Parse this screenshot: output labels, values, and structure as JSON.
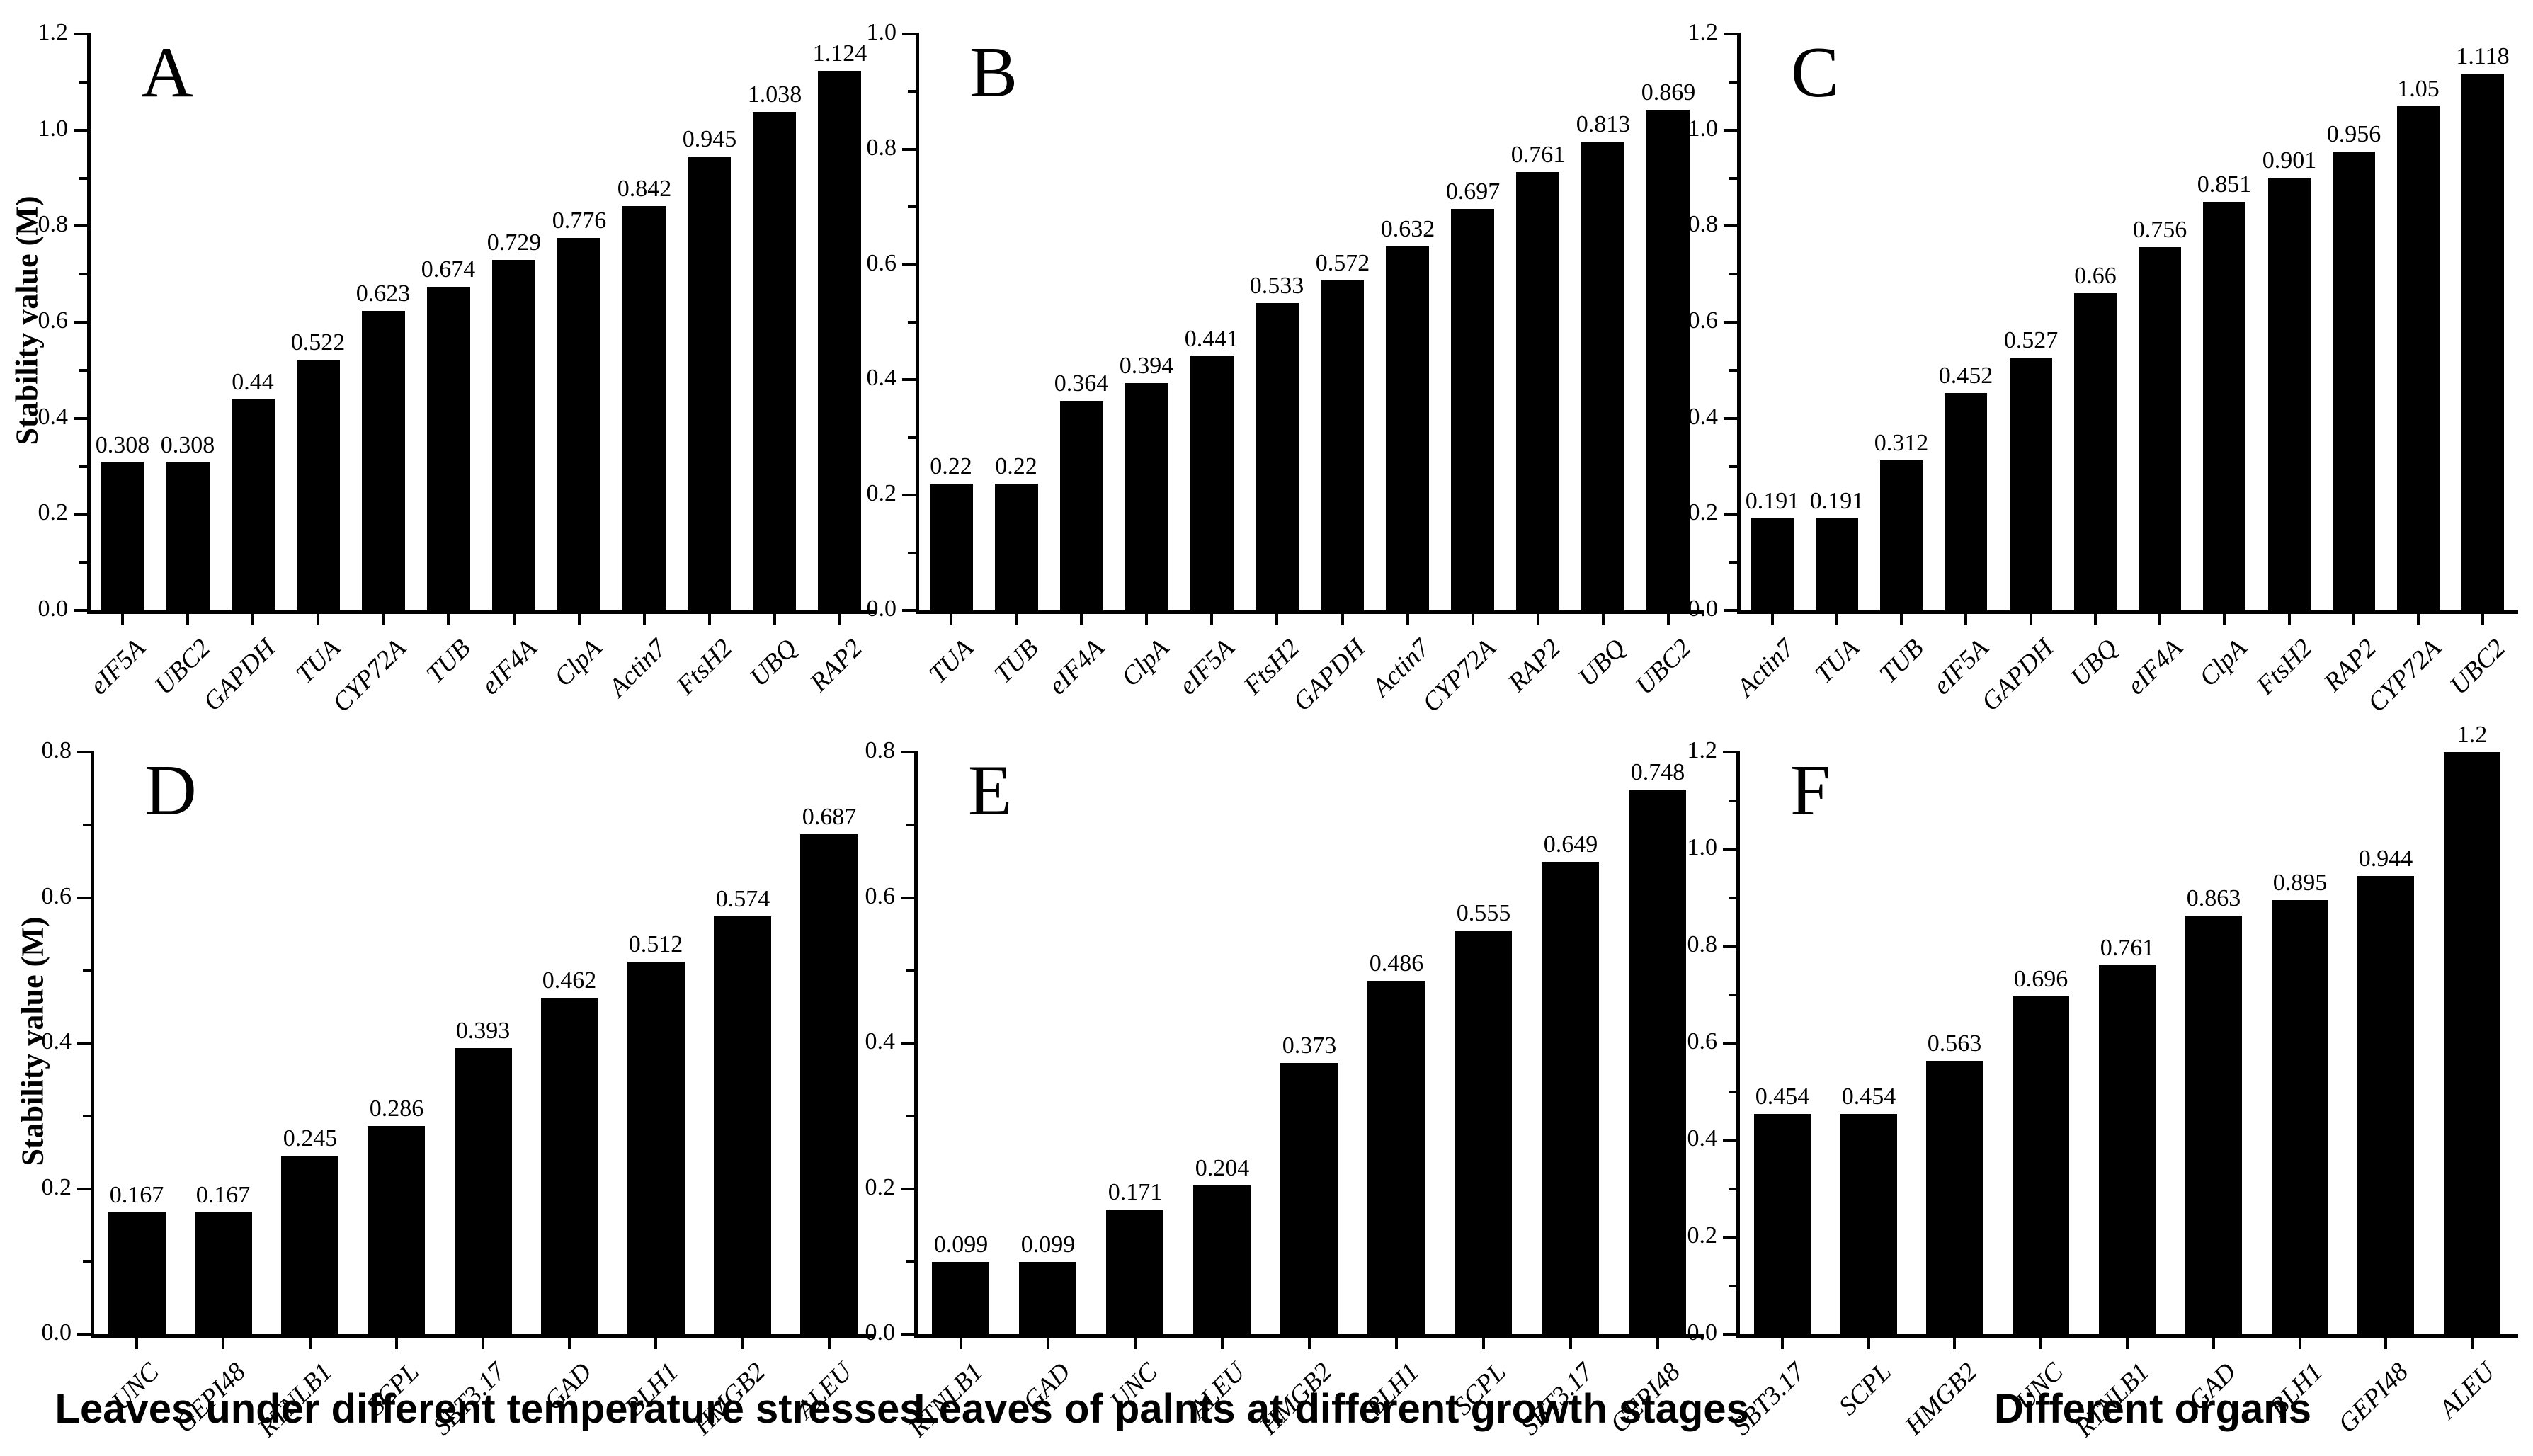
{
  "figure": {
    "background": "#ffffff",
    "bar_color": "#000000",
    "text_color": "#000000",
    "ylabel": "Stability value (M)"
  },
  "chart_data": [
    {
      "panel": "A",
      "type": "bar",
      "categories": [
        "eIF5A",
        "UBC2",
        "GAPDH",
        "TUA",
        "CYP72A",
        "TUB",
        "eIF4A",
        "ClpA",
        "Actin7",
        "FtsH2",
        "UBQ",
        "RAP2"
      ],
      "values": [
        0.308,
        0.308,
        0.44,
        0.522,
        0.623,
        0.674,
        0.729,
        0.776,
        0.842,
        0.945,
        1.038,
        1.124
      ],
      "value_labels": [
        "0.308",
        "0.308",
        "0.44",
        "0.522",
        "0.623",
        "0.674",
        "0.729",
        "0.776",
        "0.842",
        "0.945",
        "1.038",
        "1.124"
      ],
      "ylim": [
        0,
        1.2
      ],
      "ytick_step": 0.2,
      "ytick_labels": [
        "0.0",
        "0.2",
        "0.4",
        "0.6",
        "0.8",
        "1.0",
        "1.2"
      ],
      "ylabel": "Stability value (M)",
      "xlabel": "",
      "grid": false
    },
    {
      "panel": "B",
      "type": "bar",
      "categories": [
        "TUA",
        "TUB",
        "eIF4A",
        "ClpA",
        "eIF5A",
        "FtsH2",
        "GAPDH",
        "Actin7",
        "CYP72A",
        "RAP2",
        "UBQ",
        "UBC2"
      ],
      "values": [
        0.22,
        0.22,
        0.364,
        0.394,
        0.441,
        0.533,
        0.572,
        0.632,
        0.697,
        0.761,
        0.813,
        0.869
      ],
      "value_labels": [
        "0.22",
        "0.22",
        "0.364",
        "0.394",
        "0.441",
        "0.533",
        "0.572",
        "0.632",
        "0.697",
        "0.761",
        "0.813",
        "0.869"
      ],
      "ylim": [
        0,
        1.0
      ],
      "ytick_step": 0.2,
      "ytick_labels": [
        "0.0",
        "0.2",
        "0.4",
        "0.6",
        "0.8",
        "1.0"
      ],
      "ylabel": "",
      "xlabel": "",
      "grid": false
    },
    {
      "panel": "C",
      "type": "bar",
      "categories": [
        "Actin7",
        "TUA",
        "TUB",
        "eIF5A",
        "GAPDH",
        "UBQ",
        "eIF4A",
        "ClpA",
        "FtsH2",
        "RAP2",
        "CYP72A",
        "UBC2"
      ],
      "values": [
        0.191,
        0.191,
        0.312,
        0.452,
        0.527,
        0.66,
        0.756,
        0.851,
        0.901,
        0.956,
        1.05,
        1.118
      ],
      "value_labels": [
        "0.191",
        "0.191",
        "0.312",
        "0.452",
        "0.527",
        "0.66",
        "0.756",
        "0.851",
        "0.901",
        "0.956",
        "1.05",
        "1.118"
      ],
      "ylim": [
        0,
        1.2
      ],
      "ytick_step": 0.2,
      "ytick_labels": [
        "0.0",
        "0.2",
        "0.4",
        "0.6",
        "0.8",
        "1.0",
        "1.2"
      ],
      "ylabel": "",
      "xlabel": "",
      "grid": false
    },
    {
      "panel": "D",
      "type": "bar",
      "categories": [
        "UNC",
        "GEPI48",
        "RTNLB1",
        "SCPL",
        "SBT3.17",
        "GAD",
        "BLH1",
        "HMGB2",
        "ALEU"
      ],
      "values": [
        0.167,
        0.167,
        0.245,
        0.286,
        0.393,
        0.462,
        0.512,
        0.574,
        0.687
      ],
      "value_labels": [
        "0.167",
        "0.167",
        "0.245",
        "0.286",
        "0.393",
        "0.462",
        "0.512",
        "0.574",
        "0.687"
      ],
      "ylim": [
        0,
        0.8
      ],
      "ytick_step": 0.2,
      "ytick_labels": [
        "0.0",
        "0.2",
        "0.4",
        "0.6",
        "0.8"
      ],
      "ylabel": "Stability value (M)",
      "xlabel": "Leaves under different temperature stresses",
      "grid": false
    },
    {
      "panel": "E",
      "type": "bar",
      "categories": [
        "RTNLB1",
        "GAD",
        "UNC",
        "ALEU",
        "HMGB2",
        "BLH1",
        "SCPL",
        "SBT3.17",
        "GEPI48"
      ],
      "values": [
        0.099,
        0.099,
        0.171,
        0.204,
        0.373,
        0.486,
        0.555,
        0.649,
        0.748
      ],
      "value_labels": [
        "0.099",
        "0.099",
        "0.171",
        "0.204",
        "0.373",
        "0.486",
        "0.555",
        "0.649",
        "0.748"
      ],
      "ylim": [
        0,
        0.8
      ],
      "ytick_step": 0.2,
      "ytick_labels": [
        "0.0",
        "0.2",
        "0.4",
        "0.6",
        "0.8"
      ],
      "ylabel": "",
      "xlabel": "Leaves of palnts at different growth stages",
      "grid": false
    },
    {
      "panel": "F",
      "type": "bar",
      "categories": [
        "SBT3.17",
        "SCPL",
        "HMGB2",
        "UNC",
        "RTNLB1",
        "GAD",
        "BLH1",
        "GEPI48",
        "ALEU"
      ],
      "values": [
        0.454,
        0.454,
        0.563,
        0.696,
        0.761,
        0.863,
        0.895,
        0.944,
        1.2
      ],
      "value_labels": [
        "0.454",
        "0.454",
        "0.563",
        "0.696",
        "0.761",
        "0.863",
        "0.895",
        "0.944",
        "1.2"
      ],
      "ylim": [
        0,
        1.2
      ],
      "ytick_step": 0.2,
      "ytick_labels": [
        "0.0",
        "0.2",
        "0.4",
        "0.6",
        "0.8",
        "1.0",
        "1.2"
      ],
      "ylabel": "",
      "xlabel": "Different organs",
      "grid": false
    }
  ]
}
